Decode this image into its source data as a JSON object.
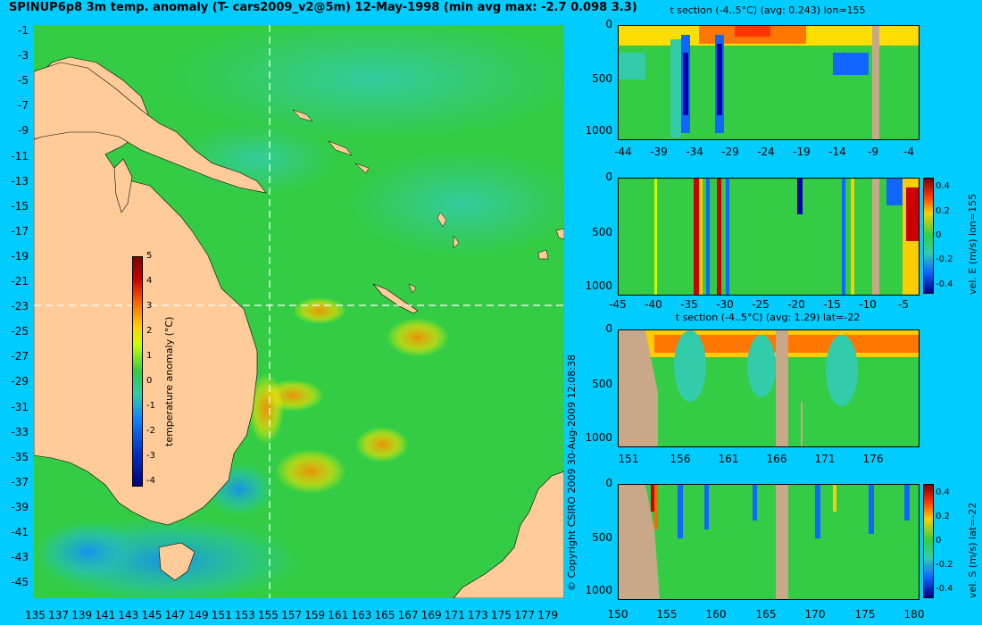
{
  "map": {
    "title": "SPINUP6p8 3m temp. anomaly (T- cars2009_v2@5m) 12-May-1998 (min avg max: -2.7 0.098 3.3)",
    "lat_ticks": [
      "-1",
      "-3",
      "-5",
      "-7",
      "-9",
      "-11",
      "-13",
      "-15",
      "-17",
      "-19",
      "-21",
      "-23",
      "-25",
      "-27",
      "-29",
      "-31",
      "-33",
      "-35",
      "-37",
      "-39",
      "-41",
      "-43",
      "-45"
    ],
    "lon_ticks": [
      "135",
      "137",
      "139",
      "141",
      "143",
      "145",
      "147",
      "149",
      "151",
      "153",
      "155",
      "157",
      "159",
      "161",
      "163",
      "165",
      "167",
      "169",
      "171",
      "173",
      "175",
      "177",
      "179"
    ],
    "section_lon": 155,
    "section_lat": -22,
    "colorbar": {
      "label": "temperature anomaly (°C)",
      "ticks": [
        "5",
        "4",
        "3",
        "2",
        "1",
        "0",
        "-1",
        "-2",
        "-3",
        "-4"
      ]
    },
    "land_color": "#ffcc99"
  },
  "copyright": "© Copyright CSIRO 2009   30-Aug-2009 12:08:38",
  "panels": [
    {
      "title": "t section (-4..5°C) (avg: 0.243) lon=155",
      "depth_ticks": [
        "0",
        "500",
        "1000"
      ],
      "x_ticks": [
        "-44",
        "-39",
        "-34",
        "-29",
        "-24",
        "-19",
        "-14",
        "-9",
        "-4"
      ]
    },
    {
      "title": "",
      "depth_ticks": [
        "0",
        "500",
        "1000"
      ],
      "x_ticks": [
        "-45",
        "-40",
        "-35",
        "-30",
        "-25",
        "-20",
        "-15",
        "-10",
        "-5"
      ],
      "colorbar": {
        "label": "vel. E (m/s) lon=155",
        "ticks": [
          "0.4",
          "0.2",
          "0",
          "-0.2",
          "-0.4"
        ]
      }
    },
    {
      "title": "t section (-4..5°C) (avg: 1.29) lat=-22",
      "depth_ticks": [
        "0",
        "500",
        "1000"
      ],
      "x_ticks": [
        "151",
        "156",
        "161",
        "166",
        "171",
        "176"
      ]
    },
    {
      "title": "",
      "depth_ticks": [
        "0",
        "500",
        "1000"
      ],
      "x_ticks": [
        "150",
        "155",
        "160",
        "165",
        "170",
        "175",
        "180"
      ],
      "colorbar": {
        "label": "vel. S (m/s) lat=-22",
        "ticks": [
          "0.4",
          "0.2",
          "0",
          "-0.2",
          "-0.4"
        ]
      }
    }
  ],
  "colors": {
    "background": "#00ccff",
    "land": "#ffcc99",
    "section_land": "#c8a888"
  }
}
